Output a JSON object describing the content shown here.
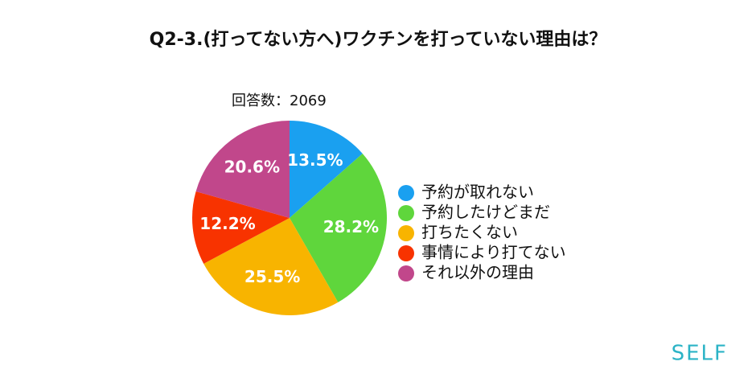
{
  "chart_data": {
    "type": "pie",
    "title": "Q2-3.(打ってない方へ)ワクチンを打っていない理由は？",
    "subtitle": "回答数：2069",
    "categories": [
      "予約が取れない",
      "予約したけどまだ",
      "打ちたくない",
      "事情により打てない",
      "それ以外の理由"
    ],
    "values": [
      13.5,
      28.2,
      25.5,
      12.2,
      20.6
    ],
    "value_labels": [
      "13.5%",
      "28.2%",
      "25.5%",
      "12.2%",
      "20.6%"
    ],
    "colors": [
      "#1aa0f0",
      "#5fd63c",
      "#f8b400",
      "#f83300",
      "#c1478b"
    ],
    "legend": "right"
  },
  "logo": "SELF"
}
